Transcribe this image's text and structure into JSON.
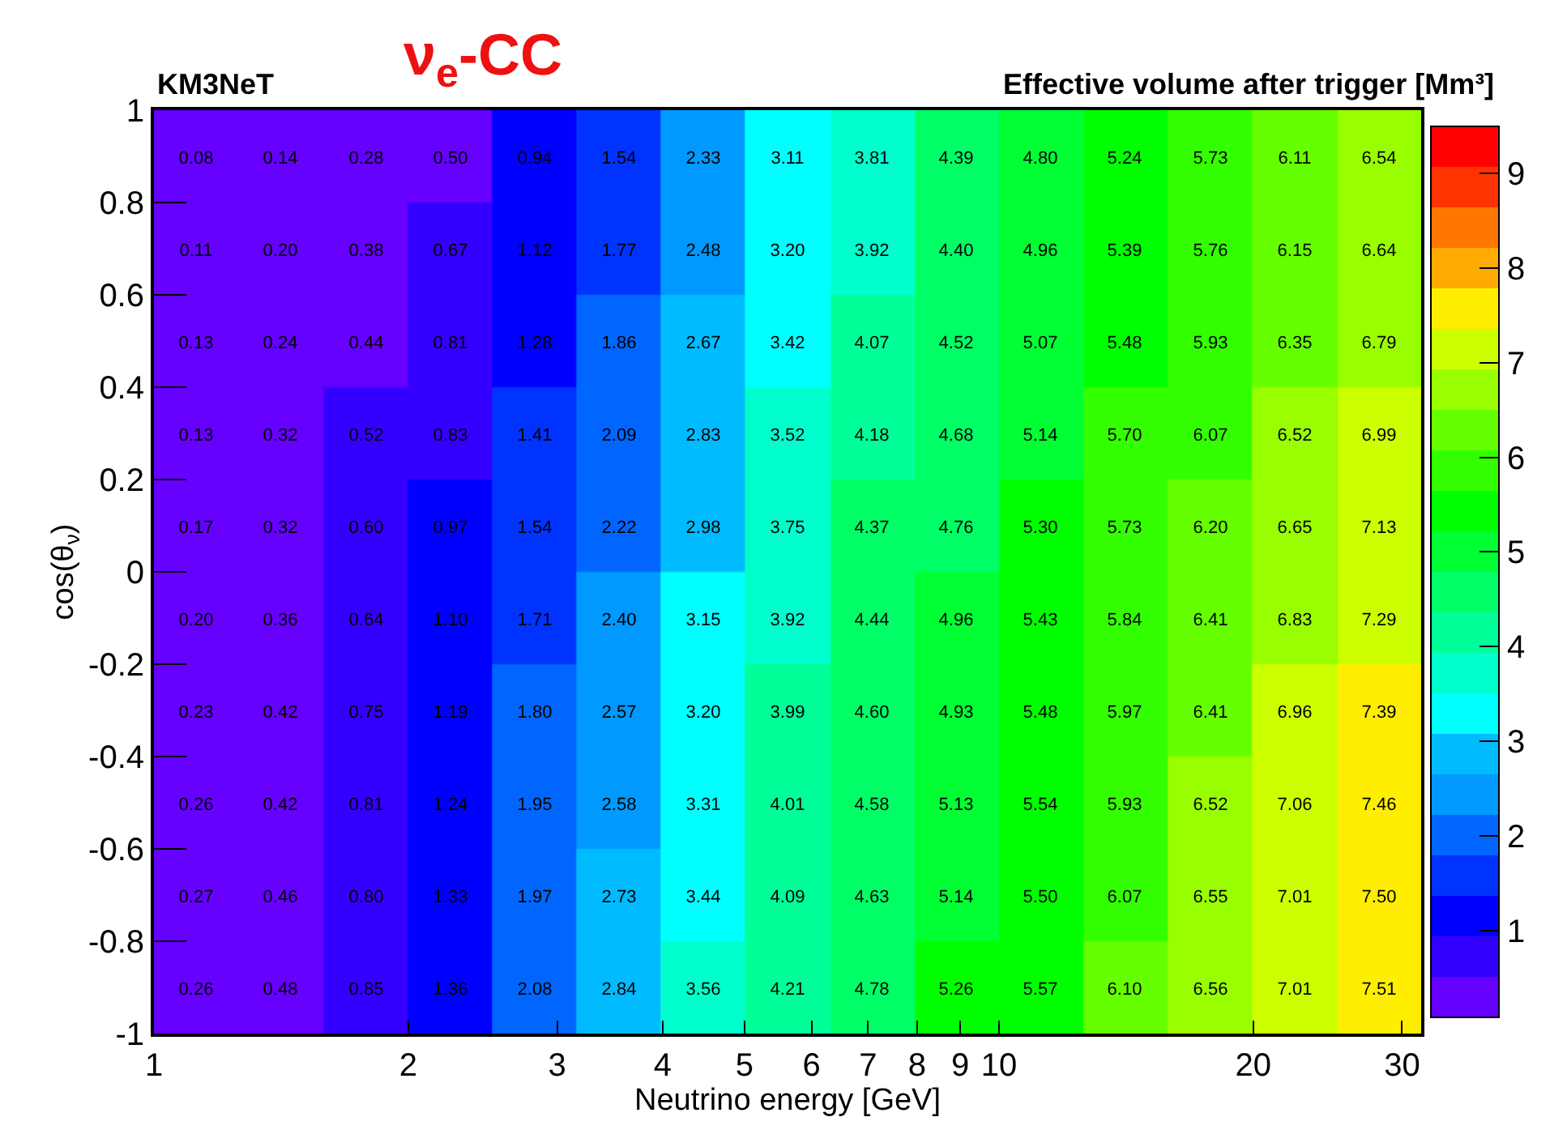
{
  "chart_data": {
    "type": "heatmap",
    "title": "ν$_{e}$-CC",
    "xlabel": "Neutrino energy [GeV]",
    "ylabel": "cos(θ$_{ν}$)",
    "clabel": "Effective volume after trigger [Mm³]",
    "annotations": [
      "KM3NeT"
    ],
    "log": "x",
    "x": [
      1.12,
      1.41,
      1.78,
      2.24,
      2.82,
      3.55,
      4.47,
      5.62,
      7.08,
      8.91,
      11.2,
      14.1,
      17.8,
      22.4,
      28.2
    ],
    "y": [
      0.9,
      0.7,
      0.5,
      0.3,
      0.1,
      -0.1,
      -0.3,
      -0.5,
      -0.7,
      -0.9
    ],
    "xlim": [
      1,
      31.6
    ],
    "xticks": [
      1,
      2,
      3,
      4,
      5,
      6,
      7,
      8,
      9,
      10,
      20,
      30
    ],
    "ylim": [
      -1,
      1
    ],
    "yticks": [
      -1,
      -0.8,
      -0.6,
      -0.4,
      -0.2,
      0,
      0.2,
      0.4,
      0.6,
      0.8,
      1
    ],
    "clim": [
      0.08,
      9.5
    ],
    "cticks": [
      1,
      2,
      3,
      4,
      5,
      6,
      7,
      8,
      9
    ],
    "cells": [
      [
        0.08,
        0.14,
        0.28,
        0.5,
        0.94,
        1.54,
        2.33,
        3.11,
        3.81,
        4.39,
        4.8,
        5.24,
        5.73,
        6.11,
        6.54
      ],
      [
        0.11,
        0.2,
        0.38,
        0.67,
        1.12,
        1.77,
        2.48,
        3.2,
        3.92,
        4.4,
        4.96,
        5.39,
        5.76,
        6.15,
        6.64
      ],
      [
        0.13,
        0.24,
        0.44,
        0.81,
        1.28,
        1.86,
        2.67,
        3.42,
        4.07,
        4.52,
        5.07,
        5.48,
        5.93,
        6.35,
        6.79
      ],
      [
        0.13,
        0.32,
        0.52,
        0.83,
        1.41,
        2.09,
        2.83,
        3.52,
        4.18,
        4.68,
        5.14,
        5.7,
        6.07,
        6.52,
        6.99
      ],
      [
        0.17,
        0.32,
        0.6,
        0.97,
        1.54,
        2.22,
        2.98,
        3.75,
        4.37,
        4.76,
        5.3,
        5.73,
        6.2,
        6.65,
        7.13
      ],
      [
        0.2,
        0.36,
        0.64,
        1.1,
        1.71,
        2.4,
        3.15,
        3.92,
        4.44,
        4.96,
        5.43,
        5.84,
        6.41,
        6.83,
        7.29
      ],
      [
        0.23,
        0.42,
        0.75,
        1.19,
        1.8,
        2.57,
        3.2,
        3.99,
        4.6,
        4.93,
        5.48,
        5.97,
        6.41,
        6.96,
        7.39
      ],
      [
        0.26,
        0.42,
        0.81,
        1.24,
        1.95,
        2.58,
        3.31,
        4.01,
        4.58,
        5.13,
        5.54,
        5.93,
        6.52,
        7.06,
        7.46
      ],
      [
        0.27,
        0.46,
        0.8,
        1.33,
        1.97,
        2.73,
        3.44,
        4.09,
        4.63,
        5.14,
        5.5,
        6.07,
        6.55,
        7.01,
        7.5
      ],
      [
        0.26,
        0.48,
        0.85,
        1.36,
        2.08,
        2.84,
        3.56,
        4.21,
        4.78,
        5.26,
        5.57,
        6.1,
        6.56,
        7.01,
        7.51
      ]
    ],
    "cell_labels": [
      [
        "0.08",
        "0.14",
        "0.28",
        "0.50",
        "0.94",
        "1.54",
        "2.33",
        "3.11",
        "3.81",
        "4.39",
        "4.80",
        "5.24",
        "5.73",
        "6.11",
        "6.54"
      ],
      [
        "0.11",
        "0.20",
        "0.38",
        "0.67",
        "1.12",
        "1.77",
        "2.48",
        "3.20",
        "3.92",
        "4.40",
        "4.96",
        "5.39",
        "5.76",
        "6.15",
        "6.64"
      ],
      [
        "0.13",
        "0.24",
        "0.44",
        "0.81",
        "1.28",
        "1.86",
        "2.67",
        "3.42",
        "4.07",
        "4.52",
        "5.07",
        "5.48",
        "5.93",
        "6.35",
        "6.79"
      ],
      [
        "0.13",
        "0.32",
        "0.52",
        "0.83",
        "1.41",
        "2.09",
        "2.83",
        "3.52",
        "4.18",
        "4.68",
        "5.14",
        "5.70",
        "6.07",
        "6.52",
        "6.99"
      ],
      [
        "0.17",
        "0.32",
        "0.60",
        "0.97",
        "1.54",
        "2.22",
        "2.98",
        "3.75",
        "4.37",
        "4.76",
        "5.30",
        "5.73",
        "6.20",
        "6.65",
        "7.13"
      ],
      [
        "0.20",
        "0.36",
        "0.64",
        "1.10",
        "1.71",
        "2.40",
        "3.15",
        "3.92",
        "4.44",
        "4.96",
        "5.43",
        "5.84",
        "6.41",
        "6.83",
        "7.29"
      ],
      [
        "0.23",
        "0.42",
        "0.75",
        "1.19",
        "1.80",
        "2.57",
        "3.20",
        "3.99",
        "4.60",
        "4.93",
        "5.48",
        "5.97",
        "6.41",
        "6.96",
        "7.39"
      ],
      [
        "0.26",
        "0.42",
        "0.81",
        "1.24",
        "1.95",
        "2.58",
        "3.31",
        "4.01",
        "4.58",
        "5.13",
        "5.54",
        "5.93",
        "6.52",
        "7.06",
        "7.46"
      ],
      [
        "0.27",
        "0.46",
        "0.80",
        "1.33",
        "1.97",
        "2.73",
        "3.44",
        "4.09",
        "4.63",
        "5.14",
        "5.50",
        "6.07",
        "6.55",
        "7.01",
        "7.50"
      ],
      [
        "0.26",
        "0.48",
        "0.85",
        "1.36",
        "2.08",
        "2.84",
        "3.56",
        "4.21",
        "4.78",
        "5.26",
        "5.57",
        "6.10",
        "6.56",
        "7.01",
        "7.51"
      ]
    ]
  }
}
